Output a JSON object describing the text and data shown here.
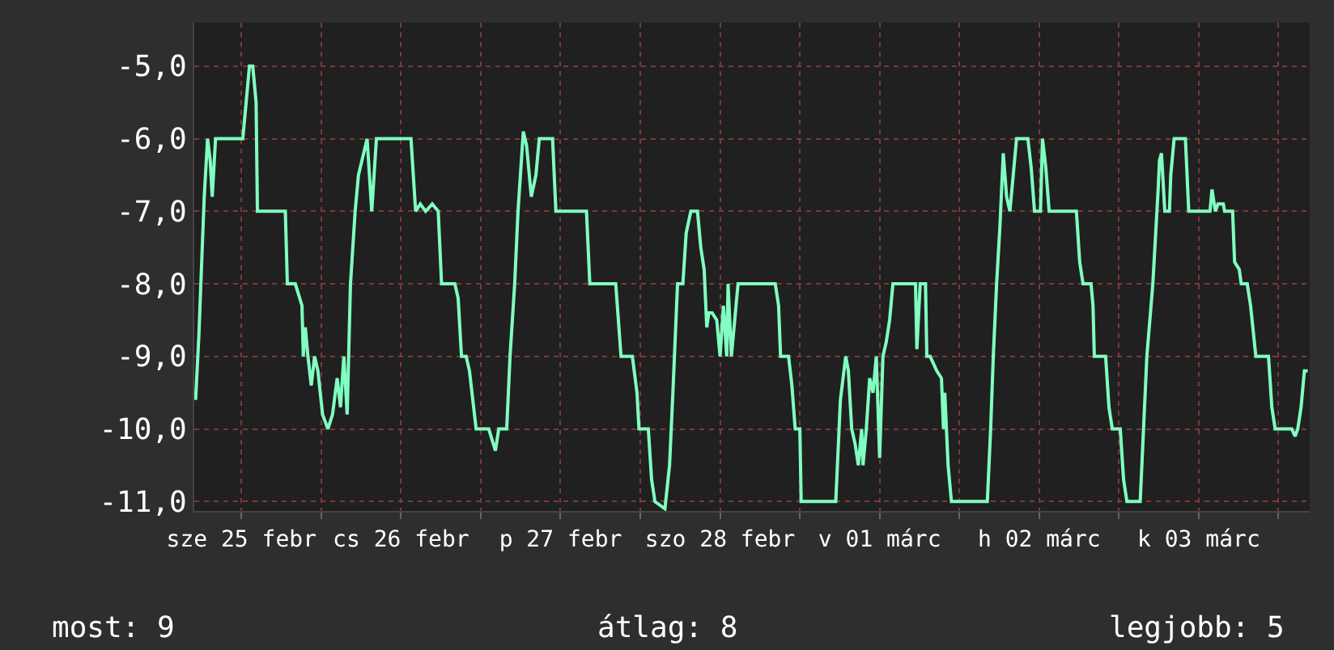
{
  "chart_data": {
    "type": "line",
    "x": [
      "--02-25T05:06",
      "--02-25T05:36",
      "--02-25T06:06",
      "--02-25T06:24",
      "--02-25T06:54",
      "--02-25T07:18",
      "--02-25T07:36",
      "--02-25T08:06",
      "--02-25T12:12",
      "--02-25T12:42",
      "--02-25T13:12",
      "--02-25T13:42",
      "--02-25T14:12",
      "--02-25T14:24",
      "--02-25T18:36",
      "--02-25T18:54",
      "--02-25T20:06",
      "--02-25T21:06",
      "--02-25T21:18",
      "--02-25T21:36",
      "--02-25T22:00",
      "--02-25T22:30",
      "--02-25T23:00",
      "--02-25T23:30",
      "--02-26T00:12",
      "--02-26T01:00",
      "--02-26T01:42",
      "--02-26T02:24",
      "--02-26T02:54",
      "--02-26T03:24",
      "--02-26T03:54",
      "--02-26T04:24",
      "--02-26T05:06",
      "--02-26T05:36",
      "--02-26T06:54",
      "--02-26T07:36",
      "--02-26T08:18",
      "--02-26T13:30",
      "--02-26T14:12",
      "--02-26T14:54",
      "--02-26T15:42",
      "--02-26T16:42",
      "--02-26T17:36",
      "--02-26T18:06",
      "--02-26T20:06",
      "--02-26T20:36",
      "--02-26T21:06",
      "--02-26T21:48",
      "--02-26T22:18",
      "--02-26T23:18",
      "--02-27T01:12",
      "--02-27T02:12",
      "--02-27T02:42",
      "--02-27T03:54",
      "--02-27T04:24",
      "--02-27T05:06",
      "--02-27T05:36",
      "--02-27T06:24",
      "--02-27T06:54",
      "--02-27T07:36",
      "--02-27T08:18",
      "--02-27T08:48",
      "--02-27T10:48",
      "--02-27T11:18",
      "--02-27T15:54",
      "--02-27T16:24",
      "--02-27T20:18",
      "--02-27T21:06",
      "--02-27T22:48",
      "--02-27T23:30",
      "--02-27T23:48",
      "--02-28T01:12",
      "--02-28T01:42",
      "--02-28T02:12",
      "--02-28T03:42",
      "--02-28T04:24",
      "--02-28T04:54",
      "--02-28T05:36",
      "--02-28T06:24",
      "--02-28T06:54",
      "--02-28T07:36",
      "--02-28T08:36",
      "--02-28T09:06",
      "--02-28T09:36",
      "--02-28T10:00",
      "--02-28T10:18",
      "--02-28T10:48",
      "--02-28T11:30",
      "--02-28T12:00",
      "--02-28T12:30",
      "--02-28T13:00",
      "--02-28T13:12",
      "--02-28T13:42",
      "--02-28T14:42",
      "--02-28T20:18",
      "--02-28T20:48",
      "--02-28T21:06",
      "--02-28T22:18",
      "--02-28T22:48",
      "--02-28T23:18",
      "--03-01T00:00",
      "--03-01T00:12",
      "--03-01T05:24",
      "--03-01T05:54",
      "--03-01T06:06",
      "--03-01T06:54",
      "--03-01T07:18",
      "--03-01T07:48",
      "--03-01T08:18",
      "--03-01T08:48",
      "--03-01T09:18",
      "--03-01T09:30",
      "--03-01T10:00",
      "--03-01T10:30",
      "--03-01T11:00",
      "--03-01T11:30",
      "--03-01T12:00",
      "--03-01T12:30",
      "--03-01T13:00",
      "--03-01T13:30",
      "--03-01T14:00",
      "--03-01T17:24",
      "--03-01T17:36",
      "--03-01T18:06",
      "--03-01T18:54",
      "--03-01T19:06",
      "--03-01T19:36",
      "--03-01T20:36",
      "--03-01T21:18",
      "--03-01T21:36",
      "--03-01T21:48",
      "--03-01T22:18",
      "--03-01T22:48",
      "--03-02T04:12",
      "--03-02T04:42",
      "--03-02T05:06",
      "--03-02T05:36",
      "--03-02T06:06",
      "--03-02T06:36",
      "--03-02T07:06",
      "--03-02T07:36",
      "--03-02T08:06",
      "--03-02T08:36",
      "--03-02T10:18",
      "--03-02T10:48",
      "--03-02T11:18",
      "--03-02T12:12",
      "--03-02T12:30",
      "--03-02T13:00",
      "--03-02T13:30",
      "--03-02T17:36",
      "--03-02T18:06",
      "--03-02T18:36",
      "--03-02T19:48",
      "--03-02T20:06",
      "--03-02T20:18",
      "--03-02T21:06",
      "--03-02T22:00",
      "--03-02T22:30",
      "--03-02T23:00",
      "--03-03T00:12",
      "--03-03T00:42",
      "--03-03T01:12",
      "--03-03T03:12",
      "--03-03T03:42",
      "--03-03T04:12",
      "--03-03T05:06",
      "--03-03T05:54",
      "--03-03T06:06",
      "--03-03T06:24",
      "--03-03T06:54",
      "--03-03T07:36",
      "--03-03T07:48",
      "--03-03T08:18",
      "--03-03T10:00",
      "--03-03T10:30",
      "--03-03T13:42",
      "--03-03T14:00",
      "--03-03T14:30",
      "--03-03T14:54",
      "--03-03T15:42",
      "--03-03T15:54",
      "--03-03T17:06",
      "--03-03T17:24",
      "--03-03T18:06",
      "--03-03T18:24",
      "--03-03T19:18",
      "--03-03T19:48",
      "--03-03T20:36",
      "--03-03T22:30",
      "--03-03T23:00",
      "--03-03T23:30",
      "--03-04T02:00",
      "--03-04T02:30",
      "--03-04T02:54",
      "--03-04T03:24",
      "--03-04T03:54",
      "--03-04T04:24"
    ],
    "series": [
      {
        "color": "#80ffc0",
        "values": [
          -9.6,
          -8.7,
          -7.5,
          -6.8,
          -6.0,
          -6.3,
          -6.8,
          -6.0,
          -6.0,
          -5.5,
          -5.0,
          -5.0,
          -5.5,
          -7.0,
          -7.0,
          -8.0,
          -8.0,
          -8.3,
          -9.0,
          -8.6,
          -9.0,
          -9.4,
          -9.0,
          -9.2,
          -9.8,
          -10.0,
          -9.8,
          -9.3,
          -9.7,
          -9.0,
          -9.8,
          -8.0,
          -7.0,
          -6.5,
          -6.0,
          -7.0,
          -6.0,
          -6.0,
          -7.0,
          -6.9,
          -7.0,
          -6.9,
          -7.0,
          -8.0,
          -8.0,
          -8.2,
          -9.0,
          -9.0,
          -9.2,
          -10.0,
          -10.0,
          -10.3,
          -10.0,
          -10.0,
          -9.0,
          -8.0,
          -7.0,
          -5.9,
          -6.1,
          -6.8,
          -6.5,
          -6.0,
          -6.0,
          -7.0,
          -7.0,
          -8.0,
          -8.0,
          -9.0,
          -9.0,
          -9.5,
          -10.0,
          -10.0,
          -10.7,
          -11.0,
          -11.1,
          -10.5,
          -9.5,
          -8.0,
          -8.0,
          -7.3,
          -7.0,
          -7.0,
          -7.5,
          -7.8,
          -8.6,
          -8.4,
          -8.4,
          -8.5,
          -9.0,
          -8.3,
          -9.0,
          -8.0,
          -9.0,
          -8.0,
          -8.0,
          -8.3,
          -9.0,
          -9.0,
          -9.4,
          -10.0,
          -10.0,
          -11.0,
          -11.0,
          -10.0,
          -9.6,
          -9.0,
          -9.2,
          -10.0,
          -10.2,
          -10.5,
          -10.0,
          -10.5,
          -10.0,
          -9.3,
          -9.5,
          -9.0,
          -10.4,
          -9.0,
          -8.8,
          -8.5,
          -8.0,
          -8.0,
          -8.9,
          -8.0,
          -8.0,
          -9.0,
          -9.0,
          -9.2,
          -9.3,
          -10.0,
          -9.5,
          -10.5,
          -11.0,
          -11.0,
          -10.0,
          -9.0,
          -8.0,
          -7.2,
          -6.2,
          -6.8,
          -7.0,
          -6.5,
          -6.0,
          -6.0,
          -6.4,
          -7.0,
          -7.0,
          -6.0,
          -6.4,
          -7.0,
          -7.0,
          -7.7,
          -8.0,
          -8.0,
          -8.3,
          -9.0,
          -9.0,
          -9.0,
          -9.7,
          -10.0,
          -10.0,
          -10.7,
          -11.0,
          -11.0,
          -10.0,
          -9.0,
          -8.0,
          -6.7,
          -6.3,
          -6.2,
          -7.0,
          -7.0,
          -6.5,
          -6.0,
          -6.0,
          -7.0,
          -7.0,
          -6.7,
          -7.0,
          -6.9,
          -6.9,
          -7.0,
          -7.0,
          -7.7,
          -7.8,
          -8.0,
          -8.0,
          -8.3,
          -9.0,
          -9.0,
          -9.7,
          -10.0,
          -10.0,
          -10.1,
          -10.0,
          -9.7,
          -9.2,
          -9.2
        ]
      }
    ],
    "xlim": [
      "--02-25T04:54",
      "--03-04T04:42"
    ],
    "xticks": [
      {
        "value": "--02-25T12:00",
        "label": "sze 25 febr"
      },
      {
        "value": "--02-26T00:00",
        "label": null
      },
      {
        "value": "--02-26T12:00",
        "label": "cs 26 febr"
      },
      {
        "value": "--02-27T00:00",
        "label": null
      },
      {
        "value": "--02-27T12:00",
        "label": "p 27 febr"
      },
      {
        "value": "--02-28T00:00",
        "label": null
      },
      {
        "value": "--02-28T12:00",
        "label": "szo 28 febr"
      },
      {
        "value": "--03-01T00:00",
        "label": null
      },
      {
        "value": "--03-01T12:00",
        "label": "v 01 márc"
      },
      {
        "value": "--03-02T00:00",
        "label": null
      },
      {
        "value": "--03-02T12:00",
        "label": "h 02 márc"
      },
      {
        "value": "--03-03T00:00",
        "label": null
      },
      {
        "value": "--03-03T12:00",
        "label": "k 03 márc"
      },
      {
        "value": "--03-04T00:00",
        "label": null
      }
    ],
    "ylim": [
      -11.13,
      -4.4
    ],
    "yticks": [
      {
        "value": -11,
        "label": "-11,0"
      },
      {
        "value": -10,
        "label": "-10,0"
      },
      {
        "value": -9,
        "label": "-9,0"
      },
      {
        "value": -8,
        "label": "-8,0"
      },
      {
        "value": -7,
        "label": "-7,0"
      },
      {
        "value": -6,
        "label": "-6,0"
      },
      {
        "value": -5,
        "label": "-5,0"
      }
    ],
    "grid": true,
    "marker": "none",
    "line_style": "solid",
    "annotations": [
      "most: 9",
      "átlag: 8",
      "legjobb: 5"
    ]
  }
}
